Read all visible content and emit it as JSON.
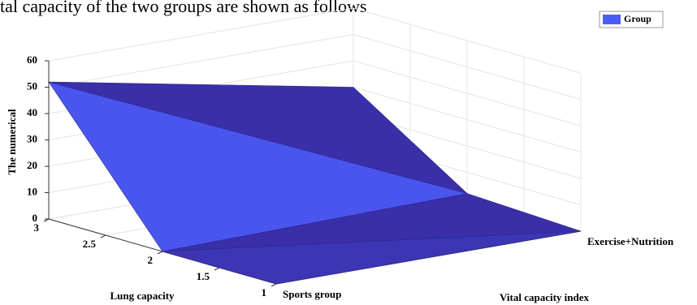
{
  "caption": "tal capacity of the two groups are shown as follows",
  "chart_data": {
    "type": "surface",
    "x_label": "Lung capacity",
    "y_label": "Vital capacity index",
    "z_label": "The numerical",
    "x": [
      1,
      2,
      3
    ],
    "xlim": [
      1,
      3
    ],
    "xticks": [
      1,
      1.5,
      2,
      2.5,
      3
    ],
    "categories": [
      "Sports group",
      "Exercise+Nutrition"
    ],
    "zlim": [
      0,
      60
    ],
    "zticks": [
      0,
      10,
      20,
      30,
      40,
      50,
      60
    ],
    "legend": "Group",
    "legend_position": "upper right",
    "color": "#4a5ef5",
    "grid": true,
    "series": [
      {
        "name": "Sports group",
        "values": [
          0,
          0,
          52
        ]
      },
      {
        "name": "Exercise+Nutrition",
        "values": [
          0,
          2,
          30
        ]
      }
    ]
  }
}
